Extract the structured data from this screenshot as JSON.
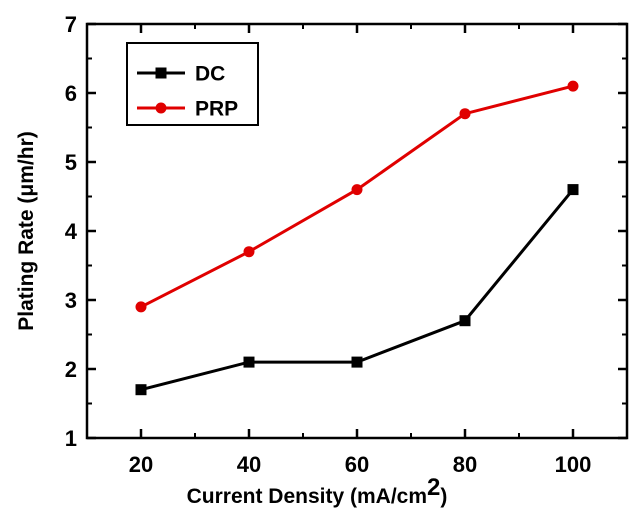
{
  "chart_data": {
    "type": "line",
    "xlabel": "Current Density (mA/cm",
    "xlabel_sup": "2",
    "xlabel_close": ")",
    "ylabel": "Plating Rate (μm/hr)",
    "x": [
      20,
      40,
      60,
      80,
      100
    ],
    "x_ticks": [
      "20",
      "40",
      "60",
      "80",
      "100"
    ],
    "y_ticks": [
      "1",
      "2",
      "3",
      "4",
      "5",
      "6",
      "7"
    ],
    "xlim": [
      10,
      110
    ],
    "ylim": [
      1,
      7
    ],
    "grid": false,
    "legend_position": "top-left",
    "series": [
      {
        "name": "DC",
        "color": "#000000",
        "marker": "square",
        "values": [
          1.7,
          2.1,
          2.1,
          2.7,
          4.6
        ]
      },
      {
        "name": "PRP",
        "color": "#e00000",
        "marker": "circle",
        "values": [
          2.9,
          3.7,
          4.6,
          5.7,
          6.1
        ]
      }
    ]
  }
}
